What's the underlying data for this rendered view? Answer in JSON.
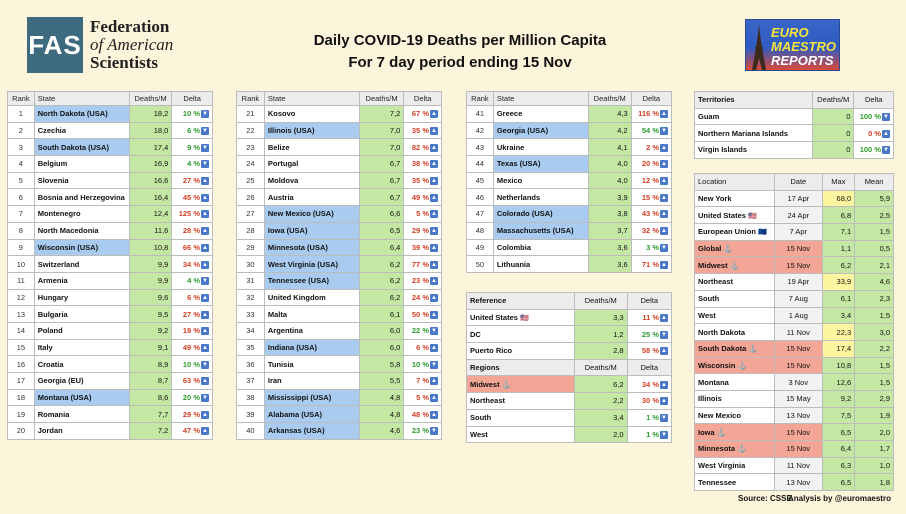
{
  "header": {
    "logo_abbr": "FAS",
    "logo_line1": "Federation",
    "logo_line2": "of American",
    "logo_line3": "Scientists",
    "title_line1": "Daily COVID-19 Deaths per Million Capita",
    "title_line2": "For 7 day period ending 15 Nov",
    "em_line1": "EURO",
    "em_line2": "MAESTRO",
    "em_line3": "REPORTS"
  },
  "columns": {
    "rank": "Rank",
    "state": "State",
    "deaths": "Deaths/M",
    "delta": "Delta"
  },
  "chart_data": {
    "type": "table",
    "rankings": [
      [
        {
          "rank": "1",
          "name": "North Dakota (USA)",
          "value": "18,2",
          "delta": "10 %",
          "dir": "dn",
          "usa": true
        },
        {
          "rank": "2",
          "name": "Czechia",
          "value": "18,0",
          "delta": "6 %",
          "dir": "dn"
        },
        {
          "rank": "3",
          "name": "South Dakota (USA)",
          "value": "17,4",
          "delta": "9 %",
          "dir": "dn",
          "usa": true
        },
        {
          "rank": "4",
          "name": "Belgium",
          "value": "16,9",
          "delta": "4 %",
          "dir": "dn"
        },
        {
          "rank": "5",
          "name": "Slovenia",
          "value": "16,6",
          "delta": "27 %",
          "dir": "up"
        },
        {
          "rank": "6",
          "name": "Bosnia and Herzegovina",
          "value": "16,4",
          "delta": "45 %",
          "dir": "up"
        },
        {
          "rank": "7",
          "name": "Montenegro",
          "value": "12,4",
          "delta": "125 %",
          "dir": "up"
        },
        {
          "rank": "8",
          "name": "North Macedonia",
          "value": "11,6",
          "delta": "28 %",
          "dir": "up"
        },
        {
          "rank": "9",
          "name": "Wisconsin (USA)",
          "value": "10,8",
          "delta": "66 %",
          "dir": "up",
          "usa": true
        },
        {
          "rank": "10",
          "name": "Switzerland",
          "value": "9,9",
          "delta": "34 %",
          "dir": "up"
        },
        {
          "rank": "11",
          "name": "Armenia",
          "value": "9,9",
          "delta": "4 %",
          "dir": "dn"
        },
        {
          "rank": "12",
          "name": "Hungary",
          "value": "9,6",
          "delta": "6 %",
          "dir": "up"
        },
        {
          "rank": "13",
          "name": "Bulgaria",
          "value": "9,5",
          "delta": "27 %",
          "dir": "up"
        },
        {
          "rank": "14",
          "name": "Poland",
          "value": "9,2",
          "delta": "19 %",
          "dir": "up"
        },
        {
          "rank": "15",
          "name": "Italy",
          "value": "9,1",
          "delta": "49 %",
          "dir": "up"
        },
        {
          "rank": "16",
          "name": "Croatia",
          "value": "8,9",
          "delta": "10 %",
          "dir": "dn"
        },
        {
          "rank": "17",
          "name": "Georgia (EU)",
          "value": "8,7",
          "delta": "63 %",
          "dir": "up"
        },
        {
          "rank": "18",
          "name": "Montana (USA)",
          "value": "8,6",
          "delta": "20 %",
          "dir": "dn",
          "usa": true
        },
        {
          "rank": "19",
          "name": "Romania",
          "value": "7,7",
          "delta": "29 %",
          "dir": "up"
        },
        {
          "rank": "20",
          "name": "Jordan",
          "value": "7,2",
          "delta": "47 %",
          "dir": "up"
        }
      ],
      [
        {
          "rank": "21",
          "name": "Kosovo",
          "value": "7,2",
          "delta": "67 %",
          "dir": "up"
        },
        {
          "rank": "22",
          "name": "Illinois (USA)",
          "value": "7,0",
          "delta": "35 %",
          "dir": "up",
          "usa": true
        },
        {
          "rank": "23",
          "name": "Belize",
          "value": "7,0",
          "delta": "82 %",
          "dir": "up"
        },
        {
          "rank": "24",
          "name": "Portugal",
          "value": "6,7",
          "delta": "38 %",
          "dir": "up"
        },
        {
          "rank": "25",
          "name": "Moldova",
          "value": "6,7",
          "delta": "35 %",
          "dir": "up"
        },
        {
          "rank": "26",
          "name": "Austria",
          "value": "6,7",
          "delta": "49 %",
          "dir": "up"
        },
        {
          "rank": "27",
          "name": "New Mexico (USA)",
          "value": "6,6",
          "delta": "5 %",
          "dir": "up",
          "usa": true
        },
        {
          "rank": "28",
          "name": "Iowa (USA)",
          "value": "6,5",
          "delta": "29 %",
          "dir": "up",
          "usa": true
        },
        {
          "rank": "29",
          "name": "Minnesota (USA)",
          "value": "6,4",
          "delta": "39 %",
          "dir": "up",
          "usa": true
        },
        {
          "rank": "30",
          "name": "West Virginia (USA)",
          "value": "6,2",
          "delta": "77 %",
          "dir": "up",
          "usa": true
        },
        {
          "rank": "31",
          "name": "Tennessee (USA)",
          "value": "6,2",
          "delta": "23 %",
          "dir": "up",
          "usa": true
        },
        {
          "rank": "32",
          "name": "United Kingdom",
          "value": "6,2",
          "delta": "24 %",
          "dir": "up"
        },
        {
          "rank": "33",
          "name": "Malta",
          "value": "6,1",
          "delta": "50 %",
          "dir": "up"
        },
        {
          "rank": "34",
          "name": "Argentina",
          "value": "6,0",
          "delta": "22 %",
          "dir": "dn"
        },
        {
          "rank": "35",
          "name": "Indiana (USA)",
          "value": "6,0",
          "delta": "6 %",
          "dir": "up",
          "usa": true
        },
        {
          "rank": "36",
          "name": "Tunisia",
          "value": "5,8",
          "delta": "10 %",
          "dir": "dn"
        },
        {
          "rank": "37",
          "name": "Iran",
          "value": "5,5",
          "delta": "7 %",
          "dir": "up"
        },
        {
          "rank": "38",
          "name": "Mississippi (USA)",
          "value": "4,8",
          "delta": "5 %",
          "dir": "up",
          "usa": true
        },
        {
          "rank": "39",
          "name": "Alabama (USA)",
          "value": "4,8",
          "delta": "48 %",
          "dir": "up",
          "usa": true
        },
        {
          "rank": "40",
          "name": "Arkansas (USA)",
          "value": "4,6",
          "delta": "23 %",
          "dir": "dn",
          "usa": true
        }
      ],
      [
        {
          "rank": "41",
          "name": "Greece",
          "value": "4,3",
          "delta": "116 %",
          "dir": "up"
        },
        {
          "rank": "42",
          "name": "Georgia (USA)",
          "value": "4,2",
          "delta": "54 %",
          "dir": "dn",
          "usa": true
        },
        {
          "rank": "43",
          "name": "Ukraine",
          "value": "4,1",
          "delta": "2 %",
          "dir": "up"
        },
        {
          "rank": "44",
          "name": "Texas (USA)",
          "value": "4,0",
          "delta": "20 %",
          "dir": "up",
          "usa": true
        },
        {
          "rank": "45",
          "name": "Mexico",
          "value": "4,0",
          "delta": "12 %",
          "dir": "up"
        },
        {
          "rank": "46",
          "name": "Netherlands",
          "value": "3,9",
          "delta": "15 %",
          "dir": "up"
        },
        {
          "rank": "47",
          "name": "Colorado (USA)",
          "value": "3,8",
          "delta": "43 %",
          "dir": "up",
          "usa": true
        },
        {
          "rank": "48",
          "name": "Massachusetts (USA)",
          "value": "3,7",
          "delta": "32 %",
          "dir": "up",
          "usa": true
        },
        {
          "rank": "49",
          "name": "Colombia",
          "value": "3,6",
          "delta": "3 %",
          "dir": "dn"
        },
        {
          "rank": "50",
          "name": "Lithuania",
          "value": "3,6",
          "delta": "71 %",
          "dir": "up"
        }
      ]
    ],
    "reference": {
      "header": "Reference",
      "rows": [
        {
          "name": "United States",
          "flag": "🇺🇸",
          "value": "3,3",
          "delta": "11 %",
          "dir": "up"
        },
        {
          "name": "DC",
          "value": "1,2",
          "delta": "25 %",
          "dir": "dn"
        },
        {
          "name": "Puerto Rico",
          "value": "2,8",
          "delta": "58 %",
          "dir": "up"
        }
      ],
      "regions_header": "Regions",
      "regions": [
        {
          "name": "Midwest",
          "value": "6,2",
          "delta": "34 %",
          "dir": "up",
          "hl": true
        },
        {
          "name": "Northeast",
          "value": "2,2",
          "delta": "30 %",
          "dir": "up"
        },
        {
          "name": "South",
          "value": "3,4",
          "delta": "1 %",
          "dir": "dn"
        },
        {
          "name": "West",
          "value": "2,0",
          "delta": "1 %",
          "dir": "dn"
        }
      ]
    },
    "territories": {
      "header": "Territories",
      "rows": [
        {
          "name": "Guam",
          "value": "0",
          "delta": "100 %",
          "dir": "dn"
        },
        {
          "name": "Northern Mariana Islands",
          "value": "0",
          "delta": "0 %",
          "dir": "up"
        },
        {
          "name": "Virgin Islands",
          "value": "0",
          "delta": "100 %",
          "dir": "dn"
        }
      ]
    },
    "peaks": {
      "columns": [
        "Location",
        "Date",
        "Max",
        "Mean"
      ],
      "rows": [
        {
          "name": "New York",
          "date": "17 Apr",
          "max": "68,0",
          "mean": "5,9",
          "maxhl": true
        },
        {
          "name": "United States",
          "flag": "🇺🇸",
          "date": "24 Apr",
          "max": "6,8",
          "mean": "2,5"
        },
        {
          "name": "European Union",
          "flag": "🇪🇺",
          "date": "7 Apr",
          "max": "7,1",
          "mean": "1,5"
        },
        {
          "name": "Global",
          "date": "15 Nov",
          "max": "1,1",
          "mean": "0,5",
          "hl": true
        },
        {
          "name": "Midwest",
          "date": "15 Nov",
          "max": "6,2",
          "mean": "2,1",
          "hl": true
        },
        {
          "name": "Northeast",
          "date": "19 Apr",
          "max": "33,9",
          "mean": "4,6",
          "maxhl": true
        },
        {
          "name": "South",
          "date": "7 Aug",
          "max": "6,1",
          "mean": "2,3"
        },
        {
          "name": "West",
          "date": "1 Aug",
          "max": "3,4",
          "mean": "1,5"
        },
        {
          "name": "North Dakota",
          "date": "11 Nov",
          "max": "22,3",
          "mean": "3,0",
          "maxhl": true
        },
        {
          "name": "South Dakota",
          "date": "15 Nov",
          "max": "17,4",
          "mean": "2,2",
          "hl": true,
          "maxhl": true
        },
        {
          "name": "Wisconsin",
          "date": "15 Nov",
          "max": "10,8",
          "mean": "1,5",
          "hl": true
        },
        {
          "name": "Montana",
          "date": "3 Nov",
          "max": "12,6",
          "mean": "1,5"
        },
        {
          "name": "Illinois",
          "date": "15 May",
          "max": "9,2",
          "mean": "2,9"
        },
        {
          "name": "New Mexico",
          "date": "13 Nov",
          "max": "7,5",
          "mean": "1,9"
        },
        {
          "name": "Iowa",
          "date": "15 Nov",
          "max": "6,5",
          "mean": "2,0",
          "hl": true
        },
        {
          "name": "Minnesota",
          "date": "15 Nov",
          "max": "6,4",
          "mean": "1,7",
          "hl": true
        },
        {
          "name": "West Virginia",
          "date": "11 Nov",
          "max": "6,3",
          "mean": "1,0"
        },
        {
          "name": "Tennessee",
          "date": "13 Nov",
          "max": "6,5",
          "mean": "1,8"
        }
      ]
    }
  },
  "footer": {
    "source": "Source: CSSE",
    "analysis": "Analysis by @euromaestro"
  }
}
